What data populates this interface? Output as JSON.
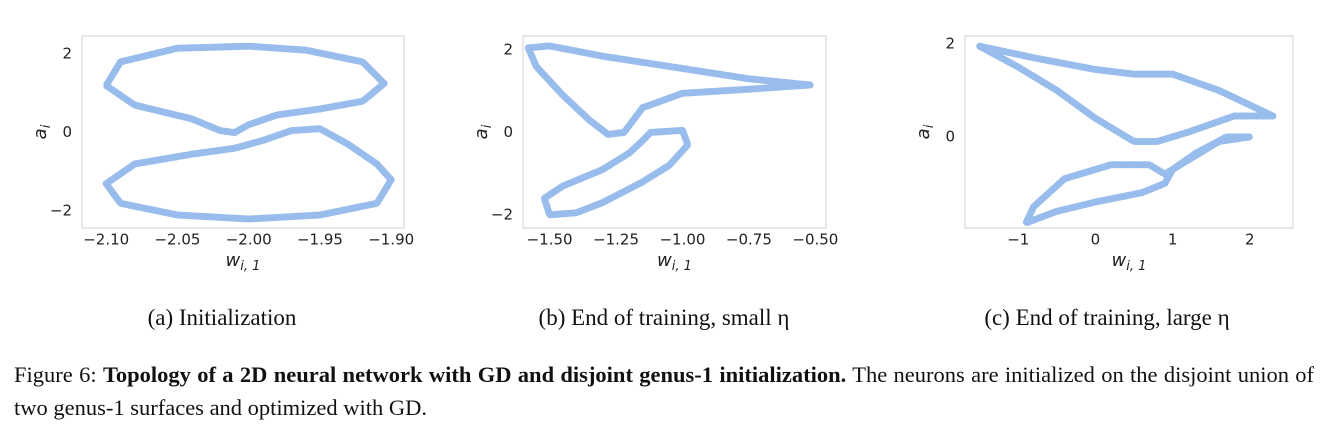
{
  "chart_data": [
    {
      "type": "line",
      "subcaption": "(a) Initialization",
      "xlabel": "w",
      "xlabel_sub": "i, 1",
      "ylabel": "a",
      "ylabel_sub": "i",
      "color": "#76a6e4",
      "xlim": [
        -2.117,
        -1.891
      ],
      "ylim": [
        -2.43,
        2.46
      ],
      "xticks": [
        {
          "value": -2.1,
          "label": "−2.10"
        },
        {
          "value": -2.05,
          "label": "−2.05"
        },
        {
          "value": -2.0,
          "label": "−2.00"
        },
        {
          "value": -1.95,
          "label": "−1.95"
        },
        {
          "value": -1.9,
          "label": "−1.90"
        }
      ],
      "yticks": [
        2,
        0,
        {
          "value": -2,
          "label": "−2"
        }
      ],
      "series": [
        {
          "x": [
            -1.905,
            -1.92,
            -1.96,
            -2.0,
            -2.05,
            -2.09,
            -2.1,
            -2.08,
            -2.04,
            -2.02,
            -2.01,
            -2.0,
            -1.98,
            -1.95,
            -1.92,
            -1.905
          ],
          "values": [
            1.25,
            1.8,
            2.1,
            2.2,
            2.15,
            1.8,
            1.2,
            0.7,
            0.35,
            0.05,
            0.0,
            0.2,
            0.45,
            0.6,
            0.8,
            1.25
          ]
        },
        {
          "x": [
            -1.9,
            -1.91,
            -1.95,
            -2.0,
            -2.05,
            -2.09,
            -2.1,
            -2.08,
            -2.04,
            -2.01,
            -1.99,
            -1.97,
            -1.95,
            -1.93,
            -1.91,
            -1.9
          ],
          "values": [
            -1.2,
            -1.8,
            -2.1,
            -2.2,
            -2.1,
            -1.8,
            -1.3,
            -0.8,
            -0.55,
            -0.4,
            -0.2,
            0.05,
            0.1,
            -0.3,
            -0.8,
            -1.2
          ]
        }
      ]
    },
    {
      "type": "line",
      "subcaption": "(b) End of training, small η",
      "xlabel": "w",
      "xlabel_sub": "i, 1",
      "ylabel": "a",
      "ylabel_sub": "i",
      "color": "#76a6e4",
      "xlim": [
        -1.6,
        -0.46
      ],
      "ylim": [
        -2.32,
        2.34
      ],
      "xticks": [
        {
          "value": -1.5,
          "label": "−1.50"
        },
        {
          "value": -1.25,
          "label": "−1.25"
        },
        {
          "value": -1.0,
          "label": "−1.00"
        },
        {
          "value": -0.75,
          "label": "−0.75"
        },
        {
          "value": -0.5,
          "label": "−0.50"
        }
      ],
      "yticks": [
        2,
        0,
        {
          "value": -2,
          "label": "−2"
        }
      ],
      "series": [
        {
          "x": [
            -1.58,
            -1.5,
            -1.3,
            -1.0,
            -0.75,
            -0.52,
            -0.75,
            -1.0,
            -1.15,
            -1.22,
            -1.28,
            -1.35,
            -1.45,
            -1.55,
            -1.58
          ],
          "values": [
            2.05,
            2.1,
            1.85,
            1.55,
            1.3,
            1.15,
            1.05,
            0.95,
            0.6,
            0.0,
            -0.05,
            0.3,
            0.9,
            1.6,
            2.05
          ]
        },
        {
          "x": [
            -1.12,
            -1.0,
            -0.98,
            -1.05,
            -1.15,
            -1.3,
            -1.4,
            -1.5,
            -1.52,
            -1.45,
            -1.3,
            -1.2,
            -1.15,
            -1.12
          ],
          "values": [
            0.0,
            0.05,
            -0.3,
            -0.8,
            -1.2,
            -1.7,
            -1.95,
            -2.0,
            -1.6,
            -1.3,
            -0.9,
            -0.5,
            -0.2,
            0.0
          ]
        }
      ]
    },
    {
      "type": "line",
      "subcaption": "(c) End of training, large η",
      "xlabel": "w",
      "xlabel_sub": "i, 1",
      "ylabel": "a",
      "ylabel_sub": "i",
      "color": "#76a6e4",
      "xlim": [
        -1.69,
        2.56
      ],
      "ylim": [
        -1.96,
        2.17
      ],
      "xticks": [
        {
          "value": -1,
          "label": "−1"
        },
        0,
        1,
        2
      ],
      "yticks": [
        2,
        0
      ],
      "series": [
        {
          "x": [
            -1.5,
            -0.8,
            0,
            0.5,
            1.0,
            1.6,
            2.3,
            1.8,
            1.2,
            0.8,
            0.5,
            0,
            -0.5,
            -1.0,
            -1.5
          ],
          "values": [
            1.95,
            1.7,
            1.45,
            1.35,
            1.35,
            1.0,
            0.45,
            0.45,
            0.1,
            -0.1,
            -0.1,
            0.4,
            1.0,
            1.5,
            1.95
          ]
        },
        {
          "x": [
            0.9,
            1.6,
            2.0,
            1.7,
            1.3,
            1.0,
            0.9,
            0.6,
            0,
            -0.5,
            -0.9,
            -0.8,
            -0.4,
            0.2,
            0.7,
            0.9
          ],
          "values": [
            -0.8,
            -0.1,
            0.0,
            0.0,
            -0.35,
            -0.7,
            -1.0,
            -1.2,
            -1.4,
            -1.6,
            -1.85,
            -1.5,
            -0.9,
            -0.6,
            -0.6,
            -0.8
          ]
        }
      ]
    }
  ],
  "caption": {
    "label": "Figure 6:",
    "bold": "Topology of a 2D neural network with GD and disjoint genus-1 initialization.",
    "text": "The neurons are initialized on the disjoint union of two genus-1 surfaces and optimized with GD."
  }
}
